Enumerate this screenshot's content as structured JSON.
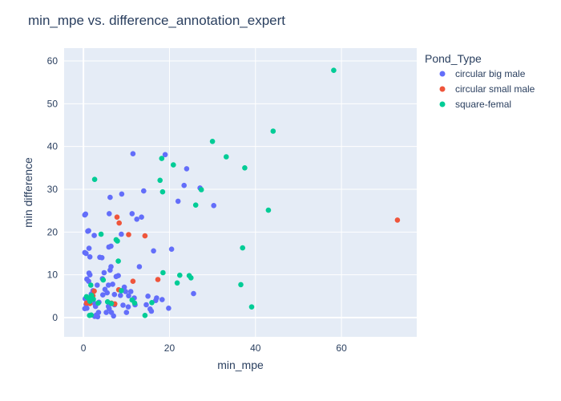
{
  "chart_data": {
    "type": "scatter",
    "title": "min_mpe vs. difference_annotation_expert",
    "xlabel": "min_mpe",
    "ylabel": "min difference",
    "xlim": [
      -4.5,
      77.5
    ],
    "ylim": [
      -4.5,
      63
    ],
    "x_ticks": [
      "0",
      "20",
      "40",
      "60"
    ],
    "x_tick_values": [
      0,
      20,
      40,
      60
    ],
    "y_ticks": [
      "0",
      "10",
      "20",
      "30",
      "40",
      "50",
      "60"
    ],
    "y_tick_values": [
      0,
      10,
      20,
      30,
      40,
      50,
      60
    ],
    "grid": true,
    "legend_title": "Pond_Type",
    "legend_position": "right",
    "series": [
      {
        "name": "circular big male",
        "color": "#636efa",
        "points": [
          [
            0.3,
            24.0
          ],
          [
            0.5,
            24.2
          ],
          [
            0.3,
            15.2
          ],
          [
            0.6,
            15.0
          ],
          [
            1.2,
            20.3
          ],
          [
            1.0,
            20.2
          ],
          [
            1.3,
            16.2
          ],
          [
            1.5,
            14.2
          ],
          [
            1.3,
            10.4
          ],
          [
            1.5,
            10.0
          ],
          [
            0.8,
            9.0
          ],
          [
            1.2,
            8.5
          ],
          [
            0.4,
            4.4
          ],
          [
            0.6,
            3.1
          ],
          [
            0.3,
            2.1
          ],
          [
            0.8,
            2.2
          ],
          [
            1.5,
            4.5
          ],
          [
            1.8,
            5.5
          ],
          [
            2.2,
            6.3
          ],
          [
            2.5,
            19.2
          ],
          [
            2.6,
            3.3
          ],
          [
            2.8,
            2.6
          ],
          [
            3.0,
            0.6
          ],
          [
            2.6,
            0.3
          ],
          [
            3.3,
            0.2
          ],
          [
            3.5,
            1.2
          ],
          [
            3.6,
            3.6
          ],
          [
            3.2,
            7.6
          ],
          [
            3.8,
            14.1
          ],
          [
            4.3,
            14.0
          ],
          [
            4.5,
            5.3
          ],
          [
            4.4,
            9.1
          ],
          [
            4.8,
            10.5
          ],
          [
            5.0,
            6.6
          ],
          [
            5.5,
            5.8
          ],
          [
            5.3,
            1.2
          ],
          [
            5.8,
            2.6
          ],
          [
            6.0,
            2.1
          ],
          [
            6.2,
            3.3
          ],
          [
            5.8,
            7.6
          ],
          [
            6.2,
            11.1
          ],
          [
            6.4,
            11.9
          ],
          [
            5.9,
            16.5
          ],
          [
            6.4,
            16.7
          ],
          [
            6.0,
            24.3
          ],
          [
            6.2,
            28.1
          ],
          [
            6.8,
            7.8
          ],
          [
            6.5,
            1.2
          ],
          [
            7.0,
            0.4
          ],
          [
            7.2,
            3.0
          ],
          [
            7.2,
            5.4
          ],
          [
            7.6,
            9.6
          ],
          [
            8.1,
            9.8
          ],
          [
            8.6,
            5.2
          ],
          [
            8.8,
            19.5
          ],
          [
            8.9,
            28.9
          ],
          [
            9.2,
            2.9
          ],
          [
            9.5,
            7.1
          ],
          [
            9.8,
            6.1
          ],
          [
            10.0,
            1.2
          ],
          [
            10.5,
            5.1
          ],
          [
            10.4,
            2.5
          ],
          [
            11.0,
            6.1
          ],
          [
            11.3,
            24.3
          ],
          [
            11.5,
            38.3
          ],
          [
            12.0,
            3.0
          ],
          [
            11.8,
            4.6
          ],
          [
            12.4,
            23.0
          ],
          [
            13.0,
            11.9
          ],
          [
            13.5,
            23.5
          ],
          [
            14.0,
            29.6
          ],
          [
            14.6,
            3.0
          ],
          [
            15.0,
            5.0
          ],
          [
            15.5,
            2.0
          ],
          [
            15.8,
            1.5
          ],
          [
            16.3,
            15.6
          ],
          [
            16.8,
            4.0
          ],
          [
            17.0,
            4.6
          ],
          [
            18.3,
            4.2
          ],
          [
            19.0,
            38.1
          ],
          [
            19.8,
            2.2
          ],
          [
            20.5,
            16.0
          ],
          [
            22.0,
            27.2
          ],
          [
            23.4,
            30.9
          ],
          [
            24.0,
            34.8
          ],
          [
            25.6,
            5.6
          ],
          [
            27.1,
            30.3
          ],
          [
            30.3,
            26.2
          ]
        ]
      },
      {
        "name": "circular small male",
        "color": "#ef553b",
        "points": [
          [
            0.7,
            3.4
          ],
          [
            1.5,
            3.3
          ],
          [
            2.2,
            5.1
          ],
          [
            2.5,
            6.2
          ],
          [
            6.5,
            3.4
          ],
          [
            7.3,
            3.2
          ],
          [
            7.8,
            23.5
          ],
          [
            8.2,
            6.5
          ],
          [
            8.3,
            22.1
          ],
          [
            10.5,
            19.4
          ],
          [
            11.5,
            8.5
          ],
          [
            14.3,
            19.1
          ],
          [
            17.3,
            8.9
          ],
          [
            73.0,
            22.8
          ]
        ]
      },
      {
        "name": "square-femal",
        "color": "#00cc96",
        "points": [
          [
            0.7,
            4.9
          ],
          [
            1.1,
            4.6
          ],
          [
            1.5,
            3.8
          ],
          [
            1.7,
            7.6
          ],
          [
            1.9,
            5.2
          ],
          [
            1.4,
            0.5
          ],
          [
            1.8,
            0.6
          ],
          [
            2.3,
            4.3
          ],
          [
            2.6,
            32.3
          ],
          [
            3.4,
            3.4
          ],
          [
            4.1,
            19.5
          ],
          [
            4.6,
            8.8
          ],
          [
            5.6,
            3.7
          ],
          [
            6.5,
            3.3
          ],
          [
            7.6,
            18.2
          ],
          [
            7.9,
            17.9
          ],
          [
            8.1,
            13.2
          ],
          [
            8.8,
            6.3
          ],
          [
            11.3,
            4.1
          ],
          [
            11.9,
            3.4
          ],
          [
            14.3,
            0.5
          ],
          [
            15.9,
            3.5
          ],
          [
            17.8,
            32.1
          ],
          [
            18.2,
            37.2
          ],
          [
            18.4,
            29.4
          ],
          [
            18.5,
            10.5
          ],
          [
            20.9,
            35.7
          ],
          [
            21.8,
            8.1
          ],
          [
            22.4,
            9.9
          ],
          [
            24.6,
            9.8
          ],
          [
            25.0,
            9.3
          ],
          [
            26.1,
            26.3
          ],
          [
            27.4,
            29.9
          ],
          [
            30.0,
            41.2
          ],
          [
            33.2,
            37.6
          ],
          [
            36.6,
            7.7
          ],
          [
            37.0,
            16.3
          ],
          [
            37.5,
            35.0
          ],
          [
            39.1,
            2.5
          ],
          [
            43.0,
            25.1
          ],
          [
            44.1,
            43.6
          ],
          [
            58.2,
            57.8
          ]
        ]
      }
    ]
  }
}
